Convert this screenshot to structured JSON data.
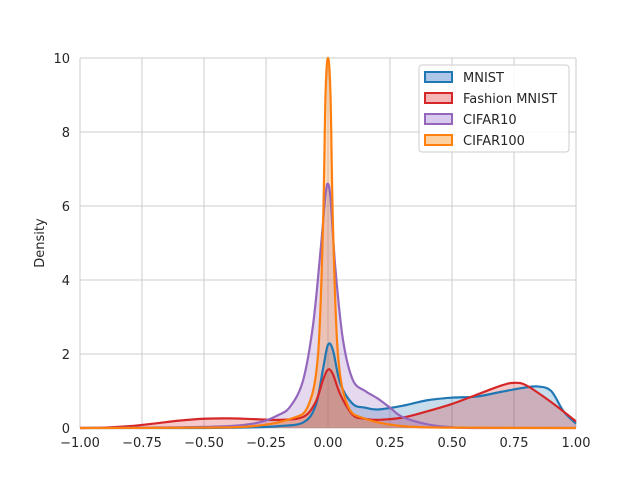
{
  "chart_data": {
    "type": "area",
    "title": "",
    "xlabel": "",
    "ylabel": "Density",
    "xlim": [
      -1.0,
      1.0
    ],
    "ylim": [
      0,
      10
    ],
    "x_ticks": [
      -1.0,
      -0.75,
      -0.5,
      -0.25,
      0.0,
      0.25,
      0.5,
      0.75,
      1.0
    ],
    "x_tick_labels": [
      "−1.00",
      "−0.75",
      "−0.50",
      "−0.25",
      "0.00",
      "0.25",
      "0.50",
      "0.75",
      "1.00"
    ],
    "y_ticks": [
      0,
      2,
      4,
      6,
      8,
      10
    ],
    "y_tick_labels": [
      "0",
      "2",
      "4",
      "6",
      "8",
      "10"
    ],
    "grid": true,
    "legend_position": "top-right",
    "series": [
      {
        "name": "MNIST",
        "color": "#1f77b4",
        "fill": "#aec7e8",
        "x": [
          -1.0,
          -0.5,
          -0.3,
          -0.2,
          -0.1,
          -0.05,
          -0.02,
          0.0,
          0.02,
          0.05,
          0.1,
          0.15,
          0.2,
          0.3,
          0.4,
          0.5,
          0.6,
          0.7,
          0.8,
          0.85,
          0.9,
          0.95,
          1.0
        ],
        "y": [
          0.0,
          0.0,
          0.02,
          0.05,
          0.15,
          0.6,
          1.6,
          2.25,
          2.1,
          1.2,
          0.65,
          0.55,
          0.5,
          0.6,
          0.75,
          0.82,
          0.85,
          0.98,
          1.1,
          1.12,
          1.0,
          0.45,
          0.12
        ]
      },
      {
        "name": "Fashion MNIST",
        "color": "#d62728",
        "fill": "#f4b6b6",
        "x": [
          -1.0,
          -0.9,
          -0.8,
          -0.7,
          -0.6,
          -0.5,
          -0.4,
          -0.3,
          -0.2,
          -0.1,
          -0.05,
          -0.02,
          0.0,
          0.02,
          0.05,
          0.1,
          0.15,
          0.2,
          0.3,
          0.4,
          0.5,
          0.6,
          0.7,
          0.75,
          0.8,
          0.9,
          1.0
        ],
        "y": [
          0.0,
          0.01,
          0.05,
          0.12,
          0.2,
          0.25,
          0.26,
          0.24,
          0.22,
          0.3,
          0.7,
          1.3,
          1.58,
          1.45,
          0.9,
          0.35,
          0.25,
          0.22,
          0.28,
          0.45,
          0.65,
          0.9,
          1.15,
          1.22,
          1.15,
          0.7,
          0.18
        ]
      },
      {
        "name": "CIFAR10",
        "color": "#9467bd",
        "fill": "#d9cbee",
        "x": [
          -1.0,
          -0.5,
          -0.3,
          -0.2,
          -0.15,
          -0.1,
          -0.06,
          -0.03,
          -0.01,
          0.0,
          0.01,
          0.03,
          0.06,
          0.1,
          0.15,
          0.2,
          0.25,
          0.3,
          0.4,
          0.5,
          0.6,
          1.0
        ],
        "y": [
          0.0,
          0.03,
          0.12,
          0.35,
          0.6,
          1.3,
          2.8,
          4.8,
          6.3,
          6.6,
          6.2,
          4.3,
          2.4,
          1.3,
          1.0,
          0.8,
          0.55,
          0.3,
          0.1,
          0.02,
          0.0,
          0.0
        ]
      },
      {
        "name": "CIFAR100",
        "color": "#ff7f0e",
        "fill": "#fdd0a2",
        "x": [
          -1.0,
          -0.5,
          -0.3,
          -0.15,
          -0.08,
          -0.04,
          -0.02,
          -0.01,
          0.0,
          0.01,
          0.02,
          0.04,
          0.08,
          0.15,
          0.3,
          0.5,
          1.0
        ],
        "y": [
          0.0,
          0.01,
          0.05,
          0.25,
          0.6,
          2.0,
          5.5,
          9.0,
          10.0,
          9.0,
          5.5,
          2.0,
          0.6,
          0.25,
          0.05,
          0.01,
          0.0
        ]
      }
    ]
  }
}
